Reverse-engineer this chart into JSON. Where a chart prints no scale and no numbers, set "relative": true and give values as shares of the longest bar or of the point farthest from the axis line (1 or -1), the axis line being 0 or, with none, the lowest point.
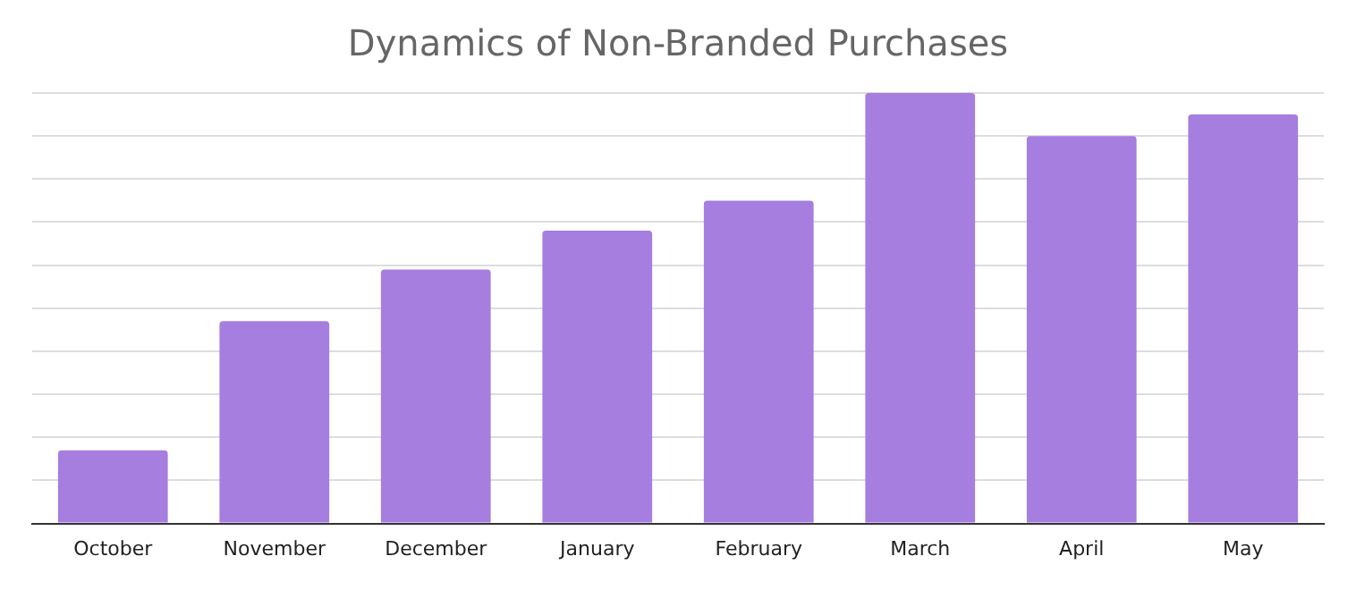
{
  "chart_data": {
    "type": "bar",
    "title": "Dynamics of Non-Branded Purchases",
    "categories": [
      "October",
      "November",
      "December",
      "January",
      "February",
      "March",
      "April",
      "May"
    ],
    "values": [
      0.17,
      0.47,
      0.59,
      0.68,
      0.75,
      1,
      0.9,
      0.95
    ],
    "color": "#a57ee0",
    "relative": true,
    "grid": "y",
    "legend": false
  }
}
